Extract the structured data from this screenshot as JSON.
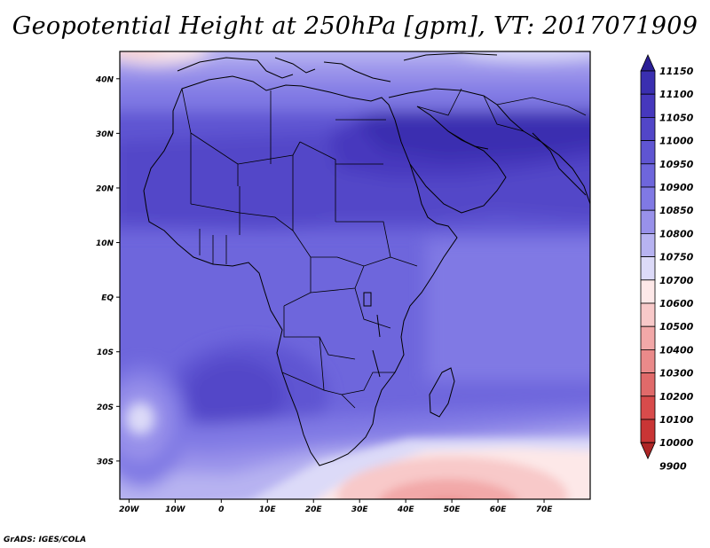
{
  "title": "Geopotential Height at 250hPa [gpm], VT: 2017071909",
  "footer": "GrADS: IGES/COLA",
  "lat_labels": [
    "40N",
    "30N",
    "20N",
    "10N",
    "EQ",
    "10S",
    "20S",
    "30S"
  ],
  "lat_values": [
    40,
    30,
    20,
    10,
    0,
    -10,
    -20,
    -30
  ],
  "lon_labels": [
    "20W",
    "10W",
    "0",
    "10E",
    "20E",
    "30E",
    "40E",
    "50E",
    "60E",
    "70E"
  ],
  "lon_values": [
    -20,
    -10,
    0,
    10,
    20,
    30,
    40,
    50,
    60,
    70
  ],
  "map_extent": {
    "lon_min": -22,
    "lon_max": 80,
    "lat_min": -37,
    "lat_max": 45
  },
  "colorbar": {
    "levels": [
      "11150",
      "11100",
      "11050",
      "11000",
      "10950",
      "10900",
      "10850",
      "10800",
      "10750",
      "10700",
      "10600",
      "10500",
      "10400",
      "10300",
      "10200",
      "10100",
      "10000",
      "9900"
    ],
    "colors": [
      "#2b1f96",
      "#3a2fb0",
      "#4638bd",
      "#5246c8",
      "#5f55d2",
      "#6e66dc",
      "#8079e4",
      "#9891ea",
      "#b7b3f1",
      "#dcdaf8",
      "#fde8e8",
      "#f8c9c9",
      "#f2a8a8",
      "#ea8a8a",
      "#e06a6a",
      "#d84b4b",
      "#c93535",
      "#ae2626"
    ]
  },
  "field_colors": {
    "c11150": "#2b1f96",
    "c11100": "#3a2fb0",
    "c11050": "#4638bd",
    "c11000": "#5246c8",
    "c10950": "#5f55d2",
    "c10900": "#6e66dc",
    "c10850": "#8079e4",
    "c10800": "#9891ea",
    "c10750": "#b7b3f1",
    "c10700": "#dcdaf8",
    "c10600": "#fde8e8",
    "c10500": "#f8c9c9",
    "c10400": "#f2a8a8",
    "c10300": "#ea8a8a"
  }
}
